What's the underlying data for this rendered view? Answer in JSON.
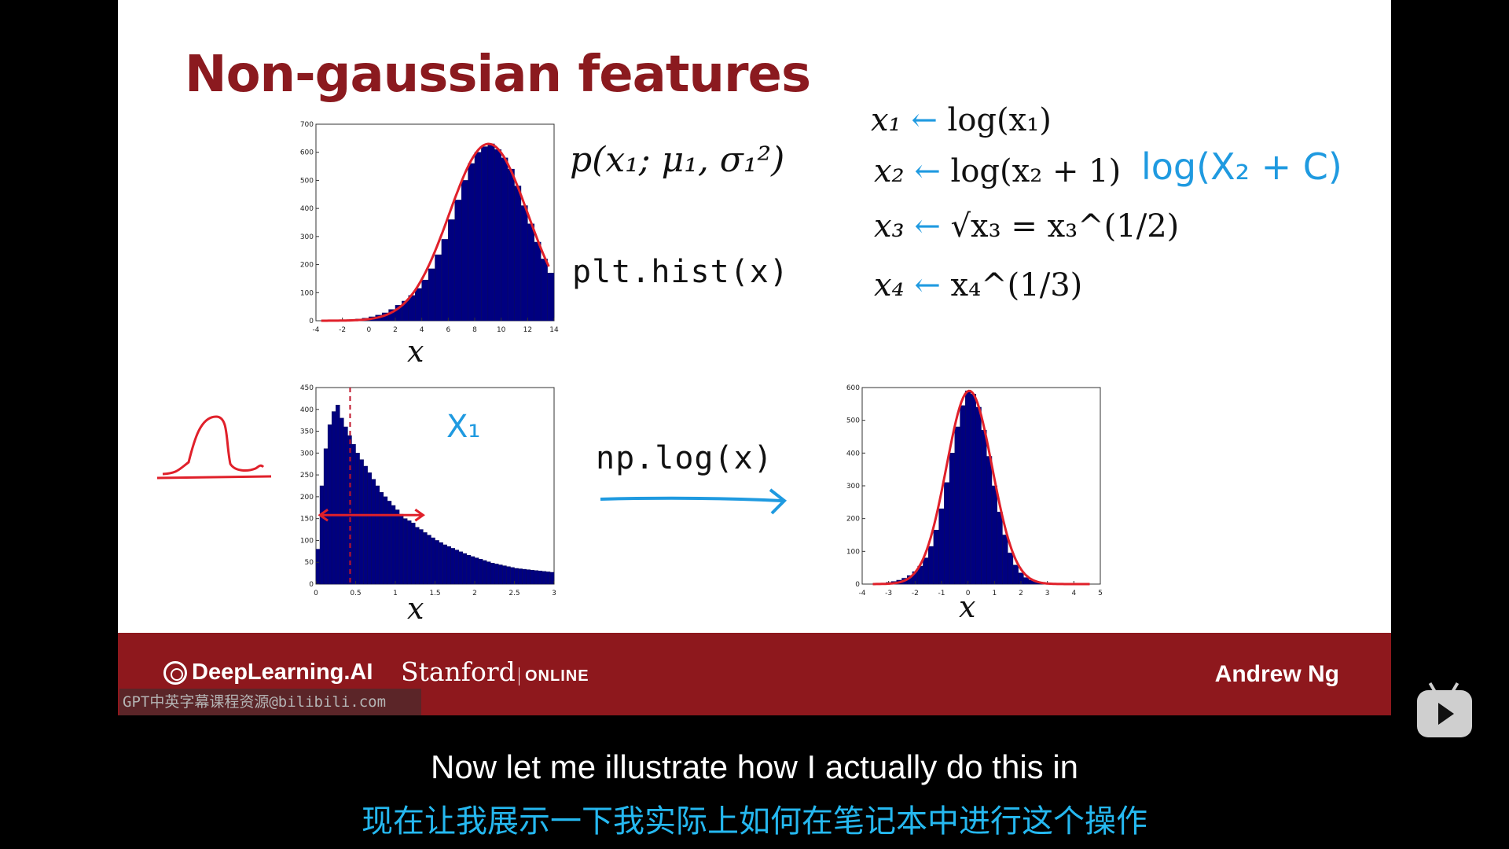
{
  "slide": {
    "title": "Non-gaussian features",
    "plot_hist_code": "plt.hist(x)",
    "np_log_code": "np.log(x)",
    "prob_formula": "p(x₁; μ₁, σ₁²)",
    "handwritten_x1": "X₁",
    "handwritten_log": "log(X₂ + C)",
    "transforms": [
      {
        "lhs": "x₁",
        "rhs": "log(x₁)"
      },
      {
        "lhs": "x₂",
        "rhs": "log(x₂ + 1)"
      },
      {
        "lhs": "x₃",
        "rhs": "√x₃ = x₃^(1/2)"
      },
      {
        "lhs": "x₄",
        "rhs": "x₄^(1/3)"
      }
    ],
    "colors": {
      "title": "#8b1a1f",
      "bars": "#000080",
      "curve": "#e0202a",
      "handwriting": "#1f9ae0"
    }
  },
  "chart_data": [
    {
      "type": "bar",
      "subtype": "histogram",
      "xlabel": "x",
      "xlim": [
        -4,
        14
      ],
      "ylim": [
        0,
        700
      ],
      "x_ticks": [
        -4,
        -2,
        0,
        2,
        4,
        6,
        8,
        10,
        12,
        14
      ],
      "y_ticks": [
        0,
        100,
        200,
        300,
        400,
        500,
        600,
        700
      ],
      "bin_start": -2,
      "bin_width": 0.5,
      "values": [
        2,
        4,
        6,
        9,
        14,
        20,
        28,
        40,
        55,
        70,
        90,
        115,
        145,
        185,
        235,
        290,
        360,
        430,
        500,
        560,
        600,
        620,
        630,
        610,
        580,
        540,
        480,
        410,
        345,
        280,
        220,
        170,
        125,
        90,
        62,
        42,
        28,
        18,
        11,
        6,
        4,
        2
      ],
      "fit_curve": "gaussian"
    },
    {
      "type": "bar",
      "subtype": "histogram",
      "xlabel": "x",
      "xlim": [
        0,
        3
      ],
      "ylim": [
        0,
        450
      ],
      "x_ticks": [
        0,
        0.5,
        1,
        1.5,
        2,
        2.5,
        3
      ],
      "y_ticks": [
        0,
        50,
        100,
        150,
        200,
        250,
        300,
        350,
        400,
        450
      ],
      "bin_start": 0,
      "bin_width": 0.05,
      "values": [
        80,
        225,
        310,
        365,
        395,
        410,
        380,
        360,
        340,
        320,
        300,
        285,
        270,
        255,
        240,
        225,
        210,
        200,
        190,
        180,
        170,
        160,
        150,
        145,
        140,
        130,
        125,
        118,
        112,
        106,
        100,
        95,
        90,
        86,
        82,
        78,
        74,
        70,
        66,
        63,
        60,
        57,
        54,
        51,
        48,
        46,
        44,
        42,
        40,
        38,
        36,
        35,
        34,
        33,
        32,
        31,
        30,
        29,
        28,
        27
      ],
      "annotation": {
        "mode_marker_x": 0.43,
        "spread_range": [
          0.05,
          1.35
        ]
      }
    },
    {
      "type": "bar",
      "subtype": "histogram",
      "xlabel": "x",
      "xlim": [
        -4,
        5
      ],
      "ylim": [
        0,
        600
      ],
      "x_ticks": [
        -4,
        -3,
        -2,
        -1,
        0,
        1,
        2,
        3,
        4,
        5
      ],
      "y_ticks": [
        0,
        100,
        200,
        300,
        400,
        500,
        600
      ],
      "bin_start": -3.5,
      "bin_width": 0.2,
      "values": [
        2,
        3,
        5,
        8,
        12,
        18,
        26,
        38,
        55,
        80,
        115,
        165,
        230,
        310,
        400,
        480,
        545,
        590,
        580,
        540,
        470,
        390,
        300,
        220,
        150,
        95,
        58,
        34,
        20,
        12,
        7,
        4,
        2,
        1,
        1,
        1,
        0,
        0,
        1,
        0
      ],
      "fit_curve": "gaussian"
    }
  ],
  "footer": {
    "brand_deeplearning": "DeepLearning.AI",
    "brand_stanford": "Stanford",
    "brand_online": "ONLINE",
    "presenter": "Andrew Ng"
  },
  "overlay": {
    "watermark": "GPT中英字幕课程资源@bilibili.com",
    "subtitle_en": "Now let me illustrate how I actually do this in",
    "subtitle_zh": "现在让我展示一下我实际上如何在笔记本中进行这个操作",
    "player_icon": "bilibili-play-icon"
  }
}
